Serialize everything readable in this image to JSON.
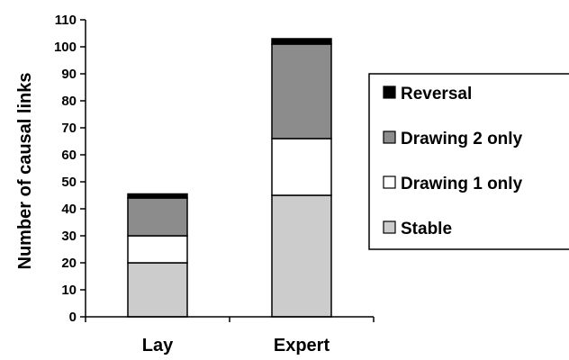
{
  "chart_data": {
    "type": "bar",
    "stacked": true,
    "categories": [
      "Lay",
      "Expert"
    ],
    "series": [
      {
        "name": "Stable",
        "values": [
          20,
          45
        ],
        "color": "#cccccc"
      },
      {
        "name": "Drawing 1 only",
        "values": [
          10,
          21
        ],
        "color": "#ffffff"
      },
      {
        "name": "Drawing 2 only",
        "values": [
          14,
          35
        ],
        "color": "#8c8c8c"
      },
      {
        "name": "Reversal",
        "values": [
          1.5,
          2
        ],
        "color": "#000000"
      }
    ],
    "legend_order": [
      "Reversal",
      "Drawing 2 only",
      "Drawing 1 only",
      "Stable"
    ],
    "ylabel": "Number of causal links",
    "xlabel": "",
    "ylim": [
      0,
      110
    ],
    "yticks": [
      0,
      10,
      20,
      30,
      40,
      50,
      60,
      70,
      80,
      90,
      100,
      110
    ],
    "grid": false,
    "legend_position": "right"
  }
}
